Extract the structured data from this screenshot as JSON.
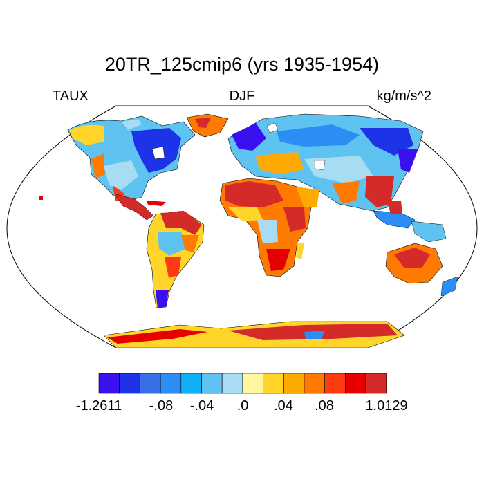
{
  "title": "20TR_125cmip6 (yrs 1935-1954)",
  "left_subtitle": "TAUX",
  "center_subtitle": "DJF",
  "right_subtitle": "kg/m/s^2",
  "colorbar": {
    "colors": [
      "#3a10f0",
      "#1d33e8",
      "#3b6fe6",
      "#2a8ef5",
      "#0fb0f5",
      "#5ec3f0",
      "#a7dcf2",
      "#fff6a0",
      "#ffd52a",
      "#ffaa00",
      "#ff7a00",
      "#ff3a12",
      "#e60000",
      "#d42a2a"
    ],
    "labels": [
      "-1.2611",
      "-.08",
      "-.04",
      ".0",
      ".04",
      ".08",
      "1.0129"
    ]
  },
  "map_colors": {
    "outline": "#000000",
    "ocean": "#ffffff"
  }
}
